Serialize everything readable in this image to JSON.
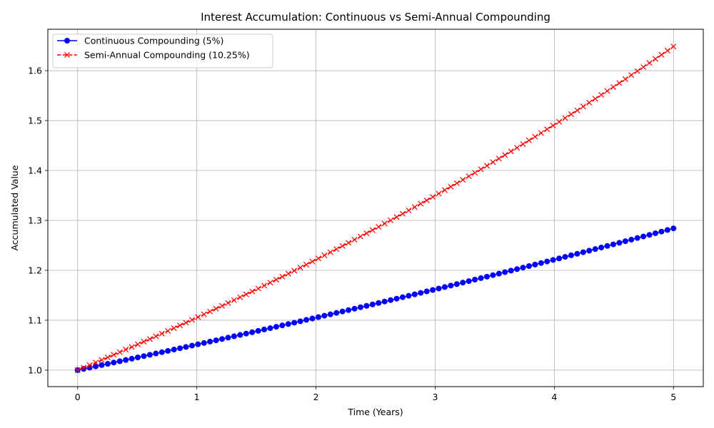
{
  "chart_data": {
    "type": "line",
    "title": "Interest Accumulation: Continuous vs Semi-Annual Compounding",
    "xlabel": "Time (Years)",
    "ylabel": "Accumulated Value",
    "xlim": [
      -0.25,
      5.25
    ],
    "ylim": [
      0.967,
      1.683
    ],
    "x_ticks": [
      0,
      1,
      2,
      3,
      4,
      5
    ],
    "x_tick_labels": [
      "0",
      "1",
      "2",
      "3",
      "4",
      "5"
    ],
    "y_ticks": [
      1.0,
      1.1,
      1.2,
      1.3,
      1.4,
      1.5,
      1.6
    ],
    "y_tick_labels": [
      "1.0",
      "1.1",
      "1.2",
      "1.3",
      "1.4",
      "1.5",
      "1.6"
    ],
    "grid": true,
    "legend_position": "top-left",
    "x": {
      "start": 0,
      "end": 5,
      "count": 100
    },
    "series": [
      {
        "name": "Continuous Compounding (5%)",
        "color": "#0000ff",
        "marker": "circle",
        "linestyle": "solid",
        "formula": "exp(0.05 * t)",
        "start_value": 1.0,
        "end_value": 1.284
      },
      {
        "name": "Semi-Annual Compounding (10.25%)",
        "color": "#ff0000",
        "marker": "x",
        "linestyle": "dashed",
        "formula": "(1 + 0.1025/2)^(2 * t)",
        "start_value": 1.0,
        "end_value": 1.649
      }
    ]
  }
}
